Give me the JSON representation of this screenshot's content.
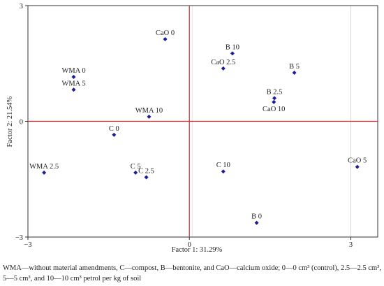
{
  "chart_data": {
    "type": "scatter",
    "title": "",
    "xlabel": "Factor 1: 31.29%",
    "ylabel": "Factor 2: 21.54%",
    "xlim": [
      -3,
      3.5
    ],
    "ylim": [
      -3,
      3
    ],
    "x_ticks": [
      -3,
      0,
      3
    ],
    "y_ticks": [
      3,
      0,
      -3
    ],
    "grid": false,
    "reference_lines": {
      "x": 0,
      "y": 0,
      "color": "#e8222a"
    },
    "point_color": "#1a1aa8",
    "points": [
      {
        "label": "CaO 0",
        "x": -0.45,
        "y": 2.13
      },
      {
        "label": "B 10",
        "x": 0.8,
        "y": 1.76
      },
      {
        "label": "CaO 2.5",
        "x": 0.63,
        "y": 1.37
      },
      {
        "label": "B 5",
        "x": 1.95,
        "y": 1.26
      },
      {
        "label": "WMA 0",
        "x": -2.15,
        "y": 1.15
      },
      {
        "label": "WMA 5",
        "x": -2.15,
        "y": 0.82
      },
      {
        "label": "B 2.5",
        "x": 1.58,
        "y": 0.6
      },
      {
        "label": "CaO 10",
        "x": 1.57,
        "y": 0.5
      },
      {
        "label": "WMA 10",
        "x": -0.75,
        "y": 0.12
      },
      {
        "label": "C 0",
        "x": -1.4,
        "y": -0.35
      },
      {
        "label": "C 5",
        "x": -1.0,
        "y": -1.33
      },
      {
        "label": "C 2.5",
        "x": -0.8,
        "y": -1.45
      },
      {
        "label": "C 10",
        "x": 0.63,
        "y": -1.3
      },
      {
        "label": "WMA 2.5",
        "x": -2.7,
        "y": -1.33
      },
      {
        "label": "CaO 5",
        "x": 3.12,
        "y": -1.18
      },
      {
        "label": "B 0",
        "x": 1.25,
        "y": -2.63
      }
    ]
  },
  "caption": "WMA—without material amendments, C—compost, B—bentonite, and CaO—calcium oxide; 0—0 cm³ (control), 2.5—2.5 cm³, 5—5 cm³, and 10—10 cm³ petrol per kg of soil"
}
